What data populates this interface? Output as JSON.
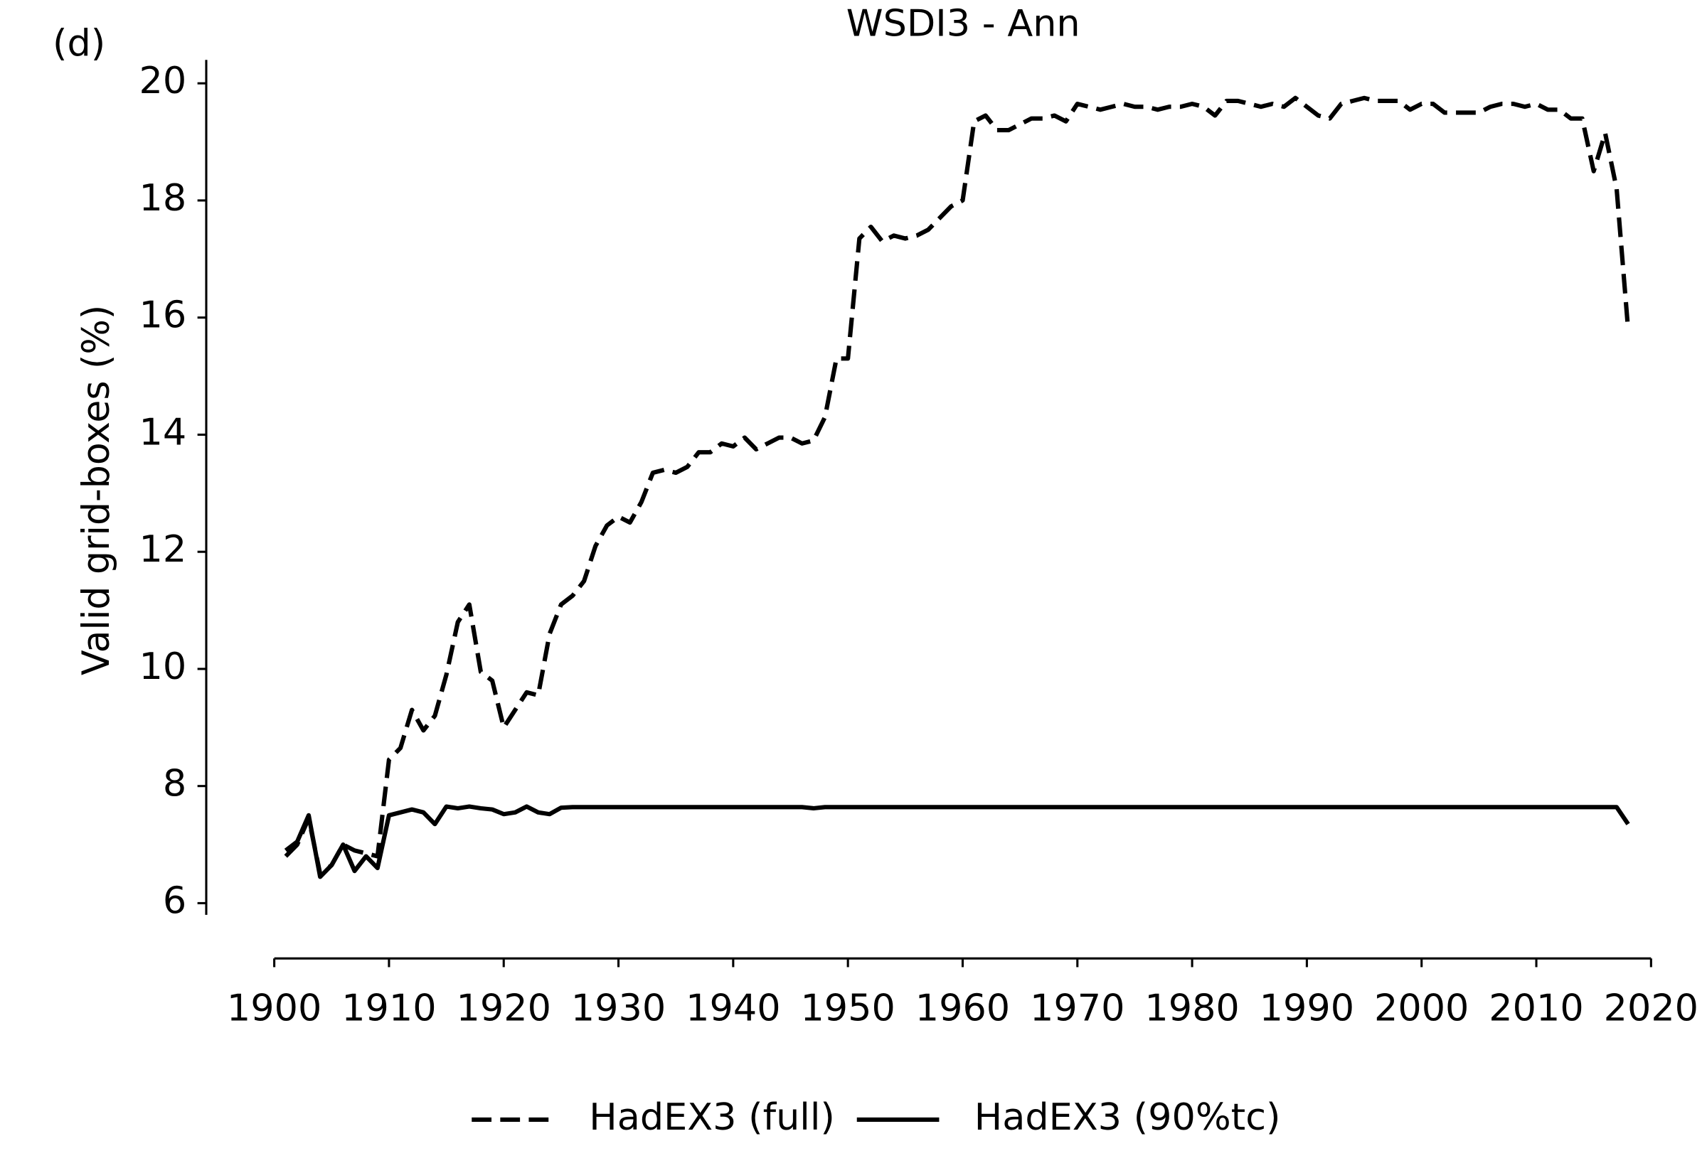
{
  "chart_data": {
    "type": "line",
    "title": "WSDI3 - Ann",
    "panel_label": "(d)",
    "y_label": "Valid grid-boxes (%)",
    "x": [
      1901,
      1902,
      1903,
      1904,
      1905,
      1906,
      1907,
      1908,
      1909,
      1910,
      1911,
      1912,
      1913,
      1914,
      1915,
      1916,
      1917,
      1918,
      1919,
      1920,
      1921,
      1922,
      1923,
      1924,
      1925,
      1926,
      1927,
      1928,
      1929,
      1930,
      1931,
      1932,
      1933,
      1934,
      1935,
      1936,
      1937,
      1938,
      1939,
      1940,
      1941,
      1942,
      1943,
      1944,
      1945,
      1946,
      1947,
      1948,
      1949,
      1950,
      1951,
      1952,
      1953,
      1954,
      1955,
      1956,
      1957,
      1958,
      1959,
      1960,
      1961,
      1962,
      1963,
      1964,
      1965,
      1966,
      1967,
      1968,
      1969,
      1970,
      1971,
      1972,
      1973,
      1974,
      1975,
      1976,
      1977,
      1978,
      1979,
      1980,
      1981,
      1982,
      1983,
      1984,
      1985,
      1986,
      1987,
      1988,
      1989,
      1990,
      1991,
      1992,
      1993,
      1994,
      1995,
      1996,
      1997,
      1998,
      1999,
      2000,
      2001,
      2002,
      2003,
      2004,
      2005,
      2006,
      2007,
      2008,
      2009,
      2010,
      2011,
      2012,
      2013,
      2014,
      2015,
      2016,
      2017,
      2018
    ],
    "series": [
      {
        "name": "HadEX3 (full)",
        "color": "#000000",
        "linestyle": "dashed",
        "values": [
          6.8,
          7.0,
          7.45,
          6.5,
          6.65,
          7.0,
          6.9,
          6.85,
          6.8,
          8.45,
          8.65,
          9.3,
          8.95,
          9.2,
          9.9,
          10.8,
          11.1,
          9.95,
          9.8,
          9.0,
          9.3,
          9.6,
          9.55,
          10.6,
          11.1,
          11.25,
          11.5,
          12.1,
          12.45,
          12.6,
          12.5,
          12.85,
          13.35,
          13.4,
          13.35,
          13.45,
          13.7,
          13.7,
          13.85,
          13.8,
          13.95,
          13.75,
          13.85,
          13.95,
          13.95,
          13.85,
          13.9,
          14.3,
          15.3,
          15.3,
          17.35,
          17.55,
          17.3,
          17.4,
          17.35,
          17.4,
          17.5,
          17.7,
          17.9,
          18.0,
          19.35,
          19.45,
          19.2,
          19.2,
          19.3,
          19.4,
          19.4,
          19.45,
          19.35,
          19.65,
          19.6,
          19.55,
          19.6,
          19.65,
          19.6,
          19.6,
          19.55,
          19.6,
          19.6,
          19.65,
          19.6,
          19.45,
          19.7,
          19.7,
          19.65,
          19.6,
          19.65,
          19.6,
          19.75,
          19.6,
          19.45,
          19.4,
          19.65,
          19.7,
          19.75,
          19.7,
          19.7,
          19.7,
          19.55,
          19.65,
          19.65,
          19.5,
          19.5,
          19.5,
          19.5,
          19.6,
          19.65,
          19.65,
          19.6,
          19.65,
          19.55,
          19.55,
          19.4,
          19.4,
          18.5,
          19.15,
          18.2,
          15.8
        ]
      },
      {
        "name": "HadEX3 (90%tc)",
        "color": "#000000",
        "linestyle": "solid",
        "values": [
          6.9,
          7.05,
          7.5,
          6.45,
          6.65,
          7.0,
          6.55,
          6.8,
          6.6,
          7.5,
          7.55,
          7.6,
          7.55,
          7.35,
          7.65,
          7.62,
          7.65,
          7.62,
          7.6,
          7.52,
          7.55,
          7.65,
          7.55,
          7.52,
          7.63,
          7.64,
          7.64,
          7.64,
          7.64,
          7.64,
          7.64,
          7.64,
          7.64,
          7.64,
          7.64,
          7.64,
          7.64,
          7.64,
          7.64,
          7.64,
          7.64,
          7.64,
          7.64,
          7.64,
          7.64,
          7.64,
          7.62,
          7.64,
          7.64,
          7.64,
          7.64,
          7.64,
          7.64,
          7.64,
          7.64,
          7.64,
          7.64,
          7.64,
          7.64,
          7.64,
          7.64,
          7.64,
          7.64,
          7.64,
          7.64,
          7.64,
          7.64,
          7.64,
          7.64,
          7.64,
          7.64,
          7.64,
          7.64,
          7.64,
          7.64,
          7.64,
          7.64,
          7.64,
          7.64,
          7.64,
          7.64,
          7.64,
          7.64,
          7.64,
          7.64,
          7.64,
          7.64,
          7.64,
          7.64,
          7.64,
          7.64,
          7.64,
          7.64,
          7.64,
          7.64,
          7.64,
          7.64,
          7.64,
          7.64,
          7.64,
          7.64,
          7.64,
          7.64,
          7.64,
          7.64,
          7.64,
          7.64,
          7.64,
          7.64,
          7.64,
          7.64,
          7.64,
          7.64,
          7.64,
          7.64,
          7.64,
          7.64,
          7.35
        ]
      }
    ],
    "xlim": [
      1900,
      2020
    ],
    "xticks": [
      1900,
      1910,
      1920,
      1930,
      1940,
      1950,
      1960,
      1970,
      1980,
      1990,
      2000,
      2010,
      2020
    ],
    "ylim": [
      5.8,
      20.4
    ],
    "yticks": [
      6,
      8,
      10,
      12,
      14,
      16,
      18,
      20
    ],
    "grid": false,
    "legend": "bottom"
  }
}
